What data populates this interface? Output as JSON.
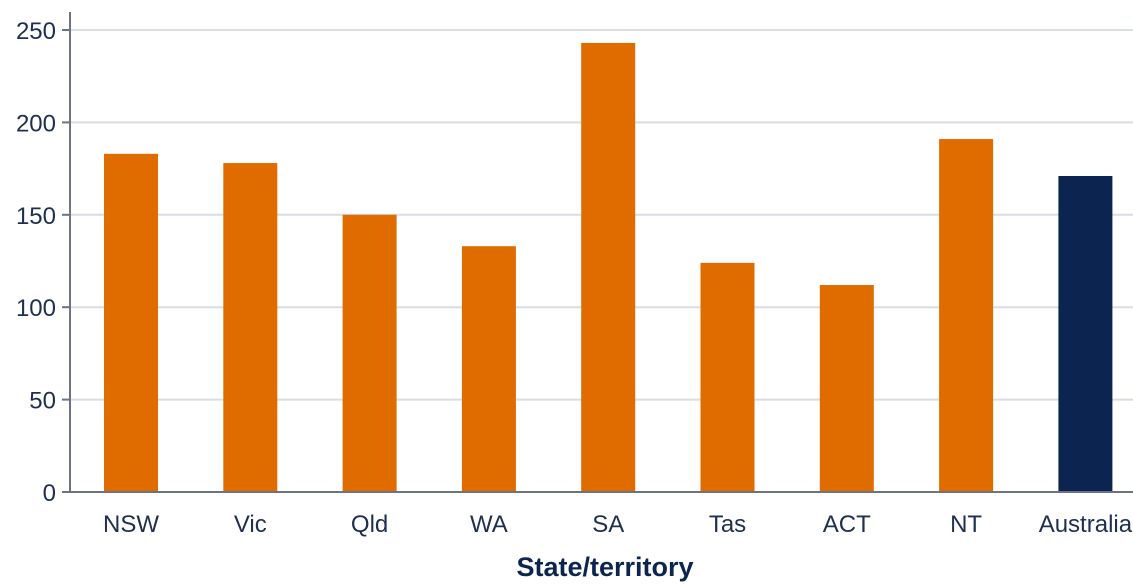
{
  "chart_data": {
    "type": "bar",
    "xlabel": "State/territory",
    "ylabel": "",
    "ylim": [
      0,
      250
    ],
    "yticks": [
      0,
      50,
      100,
      150,
      200,
      250
    ],
    "grid": true,
    "categories": [
      "NSW",
      "Vic",
      "Qld",
      "WA",
      "SA",
      "Tas",
      "ACT",
      "NT",
      "Australia"
    ],
    "values": [
      183,
      178,
      150,
      133,
      243,
      124,
      112,
      191,
      171
    ],
    "colors": {
      "default_bar": "#e06c00",
      "highlight_bar": "#0b2550",
      "gridline": "#d9dde6",
      "axis": "#6b7385"
    },
    "highlight_category": "Australia"
  }
}
